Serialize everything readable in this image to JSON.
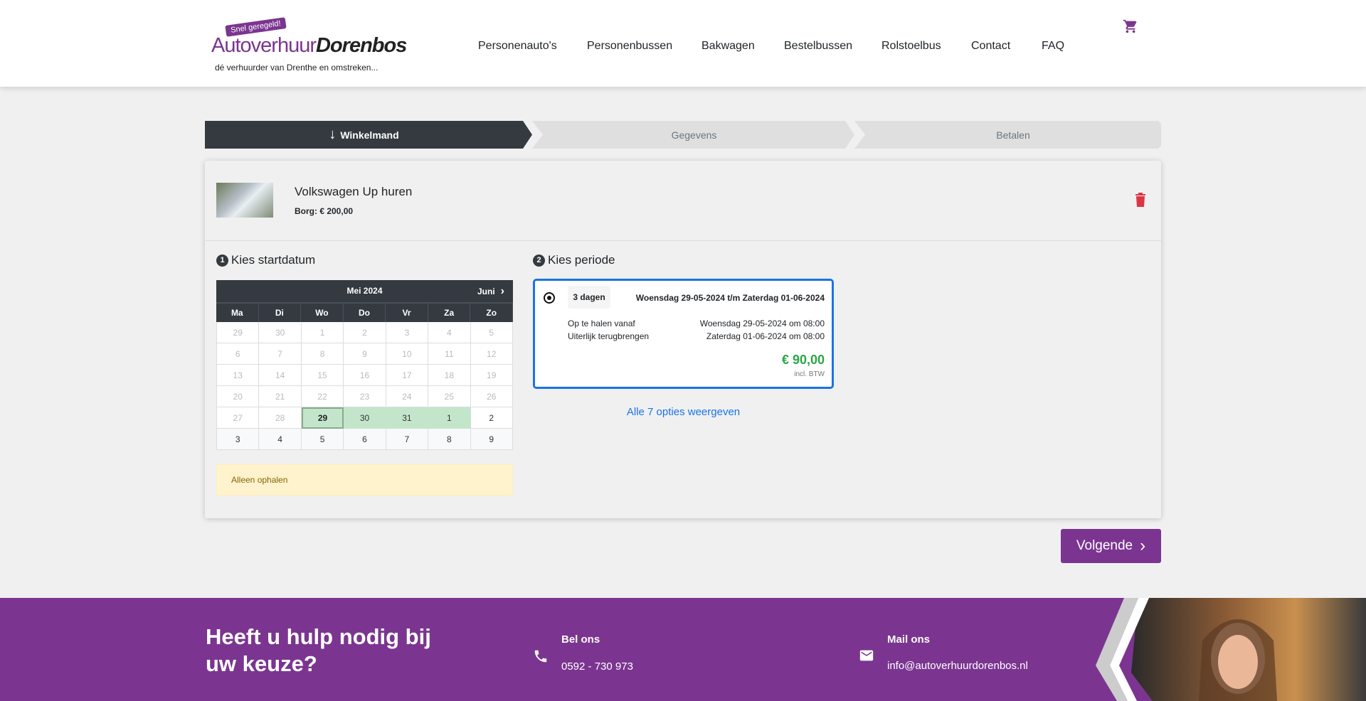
{
  "header": {
    "logo": {
      "tag": "Snel geregeld!",
      "brand_a": "Autoverhuur",
      "brand_b": "Dorenbos",
      "tagline": "dé verhuurder van Drenthe en omstreken..."
    },
    "nav": [
      "Personenauto's",
      "Personenbussen",
      "Bakwagen",
      "Bestelbussen",
      "Rolstoelbus",
      "Contact",
      "FAQ"
    ],
    "cart_icon": "shopping-cart-icon"
  },
  "steps": [
    {
      "label": "Winkelmand",
      "active": true
    },
    {
      "label": "Gegevens",
      "active": false
    },
    {
      "label": "Betalen",
      "active": false
    }
  ],
  "product": {
    "title": "Volkswagen Up huren",
    "borg": "Borg: € 200,00"
  },
  "startdatum": {
    "num": "1",
    "title": "Kies startdatum",
    "month": "Mei 2024",
    "next": "Juni",
    "weekdays": [
      "Ma",
      "Di",
      "Wo",
      "Do",
      "Vr",
      "Za",
      "Zo"
    ],
    "weeks": [
      [
        [
          "29",
          "dis"
        ],
        [
          "30",
          "dis"
        ],
        [
          "1",
          "dis"
        ],
        [
          "2",
          "dis"
        ],
        [
          "3",
          "dis"
        ],
        [
          "4",
          "dis"
        ],
        [
          "5",
          "dis"
        ]
      ],
      [
        [
          "6",
          "dis"
        ],
        [
          "7",
          "dis"
        ],
        [
          "8",
          "dis"
        ],
        [
          "9",
          "dis"
        ],
        [
          "10",
          "dis"
        ],
        [
          "11",
          "dis"
        ],
        [
          "12",
          "dis"
        ]
      ],
      [
        [
          "13",
          "dis"
        ],
        [
          "14",
          "dis"
        ],
        [
          "15",
          "dis"
        ],
        [
          "16",
          "dis"
        ],
        [
          "17",
          "dis"
        ],
        [
          "18",
          "dis"
        ],
        [
          "19",
          "dis"
        ]
      ],
      [
        [
          "20",
          "dis"
        ],
        [
          "21",
          "dis"
        ],
        [
          "22",
          "dis"
        ],
        [
          "23",
          "dis"
        ],
        [
          "24",
          "dis"
        ],
        [
          "25",
          "dis"
        ],
        [
          "26",
          "dis"
        ]
      ],
      [
        [
          "27",
          "dis"
        ],
        [
          "28",
          "dis"
        ],
        [
          "29",
          "sel"
        ],
        [
          "30",
          "avail"
        ],
        [
          "31",
          "avail"
        ],
        [
          "1",
          "avail"
        ],
        [
          "2",
          "open"
        ]
      ],
      [
        [
          "3",
          "next"
        ],
        [
          "4",
          "next"
        ],
        [
          "5",
          "next"
        ],
        [
          "6",
          "next"
        ],
        [
          "7",
          "next"
        ],
        [
          "8",
          "next"
        ],
        [
          "9",
          "next"
        ]
      ]
    ],
    "notice": "Alleen ophalen"
  },
  "periode": {
    "num": "2",
    "title": "Kies periode",
    "option": {
      "duration": "3 dagen",
      "range": "Woensdag 29-05-2024 t/m Zaterdag 01-06-2024",
      "pickup_label": "Op te halen vanaf",
      "pickup_value": "Woensdag 29-05-2024 om 08:00",
      "return_label": "Uiterlijk terugbrengen",
      "return_value": "Zaterdag 01-06-2024 om 08:00",
      "price": "€ 90,00",
      "price_note": "incl. BTW",
      "selected": true
    },
    "more_link": "Alle 7 opties weergeven"
  },
  "next_button": "Volgende",
  "footer": {
    "heading": "Heeft u hulp nodig bij uw keuze?",
    "phone_label": "Bel ons",
    "phone": "0592 - 730 973",
    "mail_label": "Mail ons",
    "email": "info@autoverhuurdorenbos.nl"
  },
  "colors": {
    "brand": "#7b3590",
    "dark": "#343a40",
    "link": "#1a73e8",
    "price": "#28a745",
    "delete": "#dc3545",
    "available": "#c3e6cb"
  }
}
